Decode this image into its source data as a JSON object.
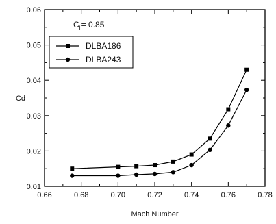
{
  "chart_data": {
    "type": "line",
    "title": "",
    "xlabel": "Mach Number",
    "ylabel": "Cd",
    "xlim": [
      0.66,
      0.78
    ],
    "ylim": [
      0.01,
      0.06
    ],
    "xticks": [
      "0.66",
      "0.68",
      "0.70",
      "0.72",
      "0.74",
      "0.76",
      "0.78"
    ],
    "yticks": [
      "0.01",
      "0.02",
      "0.03",
      "0.04",
      "0.05",
      "0.06"
    ],
    "grid": false,
    "legend_position": "top-left",
    "annotation": {
      "base": "C",
      "sub": "l",
      "rest": "= 0.85"
    },
    "series": [
      {
        "name": "DLBA186",
        "marker": "square",
        "x": [
          0.675,
          0.7,
          0.71,
          0.72,
          0.73,
          0.74,
          0.75,
          0.76,
          0.77
        ],
        "y": [
          0.015,
          0.0155,
          0.0157,
          0.016,
          0.017,
          0.019,
          0.0235,
          0.0318,
          0.043
        ]
      },
      {
        "name": "DLBA243",
        "marker": "circle",
        "x": [
          0.675,
          0.7,
          0.71,
          0.72,
          0.73,
          0.74,
          0.75,
          0.76,
          0.77
        ],
        "y": [
          0.013,
          0.013,
          0.0133,
          0.0135,
          0.014,
          0.016,
          0.0203,
          0.0272,
          0.0373
        ]
      }
    ]
  }
}
